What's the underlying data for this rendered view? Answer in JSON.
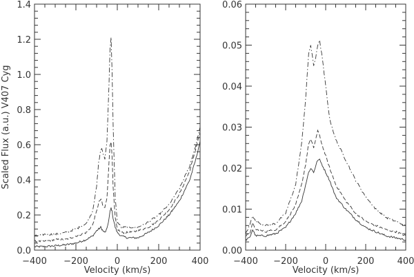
{
  "chart_data": [
    {
      "type": "line",
      "xlabel": "Velocity (km/s)",
      "ylabel": "Scaled Flux (a.u.) V407 Cyg",
      "xlim": [
        -400,
        400
      ],
      "ylim": [
        0,
        1.4
      ],
      "x_ticks": [
        -400,
        -200,
        0,
        200,
        400
      ],
      "y_ticks": [
        0.0,
        0.2,
        0.4,
        0.6,
        0.8,
        1.0,
        1.2,
        1.4
      ],
      "x_tick_labels": [
        "−400",
        "−200",
        "0",
        "200",
        "400"
      ],
      "y_tick_labels": [
        "0.0",
        "0.2",
        "0.4",
        "0.6",
        "0.8",
        "1.0",
        "1.2",
        "1.4"
      ],
      "grid": false,
      "series": [
        {
          "style": "solid",
          "x": [
            -400,
            -350,
            -300,
            -250,
            -200,
            -150,
            -120,
            -100,
            -90,
            -80,
            -75,
            -70,
            -60,
            -50,
            -40,
            -35,
            -30,
            -25,
            -20,
            -10,
            0,
            20,
            50,
            100,
            150,
            200,
            250,
            300,
            350,
            380,
            400
          ],
          "y": [
            0.02,
            0.02,
            0.025,
            0.03,
            0.04,
            0.06,
            0.08,
            0.11,
            0.12,
            0.13,
            0.12,
            0.11,
            0.1,
            0.12,
            0.18,
            0.22,
            0.24,
            0.22,
            0.18,
            0.13,
            0.1,
            0.08,
            0.07,
            0.07,
            0.1,
            0.14,
            0.2,
            0.28,
            0.4,
            0.52,
            0.62
          ]
        },
        {
          "style": "dashed",
          "x": [
            -400,
            -350,
            -300,
            -250,
            -200,
            -150,
            -120,
            -100,
            -90,
            -80,
            -75,
            -70,
            -60,
            -50,
            -40,
            -35,
            -30,
            -25,
            -20,
            -10,
            0,
            20,
            50,
            100,
            150,
            200,
            250,
            300,
            350,
            380,
            400
          ],
          "y": [
            0.05,
            0.05,
            0.06,
            0.06,
            0.08,
            0.1,
            0.14,
            0.22,
            0.27,
            0.29,
            0.28,
            0.25,
            0.24,
            0.3,
            0.5,
            0.6,
            0.62,
            0.52,
            0.35,
            0.18,
            0.12,
            0.1,
            0.1,
            0.11,
            0.13,
            0.17,
            0.23,
            0.32,
            0.45,
            0.58,
            0.67
          ]
        },
        {
          "style": "dash-dot",
          "x": [
            -400,
            -350,
            -300,
            -250,
            -200,
            -150,
            -120,
            -100,
            -90,
            -80,
            -75,
            -70,
            -60,
            -50,
            -40,
            -35,
            -30,
            -25,
            -20,
            -10,
            0,
            20,
            50,
            100,
            150,
            200,
            250,
            300,
            350,
            380,
            400
          ],
          "y": [
            0.08,
            0.09,
            0.09,
            0.1,
            0.12,
            0.15,
            0.22,
            0.36,
            0.5,
            0.57,
            0.58,
            0.55,
            0.52,
            0.62,
            0.95,
            1.15,
            1.21,
            1.0,
            0.7,
            0.3,
            0.16,
            0.13,
            0.13,
            0.13,
            0.16,
            0.2,
            0.26,
            0.35,
            0.48,
            0.6,
            0.7
          ]
        }
      ]
    },
    {
      "type": "line",
      "xlabel": "Velocity (km/s)",
      "ylabel": "",
      "xlim": [
        -400,
        400
      ],
      "ylim": [
        0,
        0.06
      ],
      "x_ticks": [
        -400,
        -200,
        0,
        200,
        400
      ],
      "y_ticks": [
        0.0,
        0.01,
        0.02,
        0.03,
        0.04,
        0.05,
        0.06
      ],
      "x_tick_labels": [
        "−400",
        "−200",
        "0",
        "200",
        "400"
      ],
      "y_tick_labels": [
        "0.00",
        "0.01",
        "0.02",
        "0.03",
        "0.04",
        "0.05",
        "0.06"
      ],
      "grid": false,
      "series": [
        {
          "style": "solid",
          "x": [
            -400,
            -380,
            -365,
            -350,
            -300,
            -250,
            -200,
            -150,
            -120,
            -100,
            -85,
            -75,
            -60,
            -40,
            -30,
            -20,
            0,
            20,
            50,
            100,
            150,
            200,
            250,
            300,
            350,
            400
          ],
          "y": [
            0.0025,
            0.003,
            0.005,
            0.0035,
            0.0035,
            0.004,
            0.0055,
            0.009,
            0.012,
            0.016,
            0.019,
            0.02,
            0.019,
            0.022,
            0.022,
            0.021,
            0.019,
            0.017,
            0.013,
            0.01,
            0.0075,
            0.0055,
            0.0045,
            0.0035,
            0.003,
            0.0025
          ]
        },
        {
          "style": "dashed",
          "x": [
            -400,
            -380,
            -365,
            -350,
            -300,
            -250,
            -200,
            -150,
            -120,
            -100,
            -85,
            -75,
            -60,
            -40,
            -30,
            -20,
            0,
            20,
            50,
            100,
            150,
            200,
            250,
            300,
            350,
            400
          ],
          "y": [
            0.0035,
            0.004,
            0.0065,
            0.005,
            0.0045,
            0.005,
            0.007,
            0.011,
            0.016,
            0.021,
            0.026,
            0.027,
            0.025,
            0.029,
            0.028,
            0.026,
            0.023,
            0.02,
            0.016,
            0.012,
            0.009,
            0.007,
            0.006,
            0.005,
            0.0045,
            0.0035
          ]
        },
        {
          "style": "dash-dot",
          "x": [
            -400,
            -380,
            -365,
            -350,
            -300,
            -250,
            -200,
            -150,
            -120,
            -100,
            -85,
            -75,
            -60,
            -50,
            -40,
            -30,
            -20,
            0,
            20,
            50,
            100,
            150,
            200,
            250,
            300,
            350,
            400
          ],
          "y": [
            0.004,
            0.006,
            0.0085,
            0.007,
            0.006,
            0.0065,
            0.009,
            0.016,
            0.026,
            0.037,
            0.048,
            0.05,
            0.045,
            0.047,
            0.05,
            0.051,
            0.048,
            0.04,
            0.032,
            0.027,
            0.022,
            0.017,
            0.013,
            0.01,
            0.008,
            0.007,
            0.006
          ]
        }
      ]
    }
  ]
}
